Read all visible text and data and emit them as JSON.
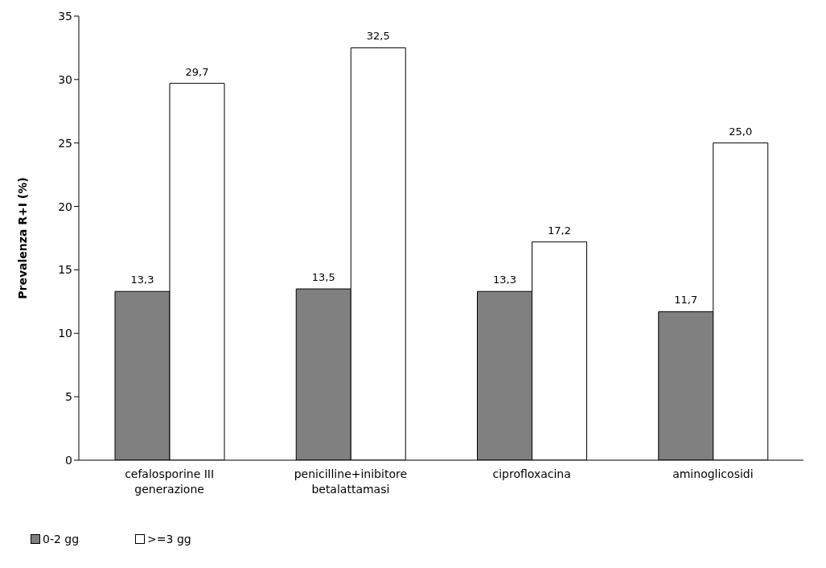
{
  "chart_data": {
    "type": "bar",
    "ylabel": "Prevalenza R+I (%)",
    "categories": [
      "cefalosporine III generazione",
      "penicilline+inibitore betalattamasi",
      "ciprofloxacina",
      "aminoglicosidi"
    ],
    "series": [
      {
        "name": "0-2 gg",
        "color": "#808080",
        "values": [
          13.3,
          13.5,
          13.3,
          11.7
        ],
        "value_labels": [
          "13,3",
          "13,5",
          "13,3",
          "11,7"
        ]
      },
      {
        "name": ">=3 gg",
        "color": "#ffffff",
        "values": [
          29.7,
          32.5,
          17.2,
          25.0
        ],
        "value_labels": [
          "29,7",
          "32,5",
          "17,2",
          "25,0"
        ]
      }
    ],
    "ylim": [
      0,
      35
    ],
    "yticks": [
      0,
      5,
      10,
      15,
      20,
      25,
      30,
      35
    ],
    "grid": false,
    "legend": "bottom left"
  }
}
